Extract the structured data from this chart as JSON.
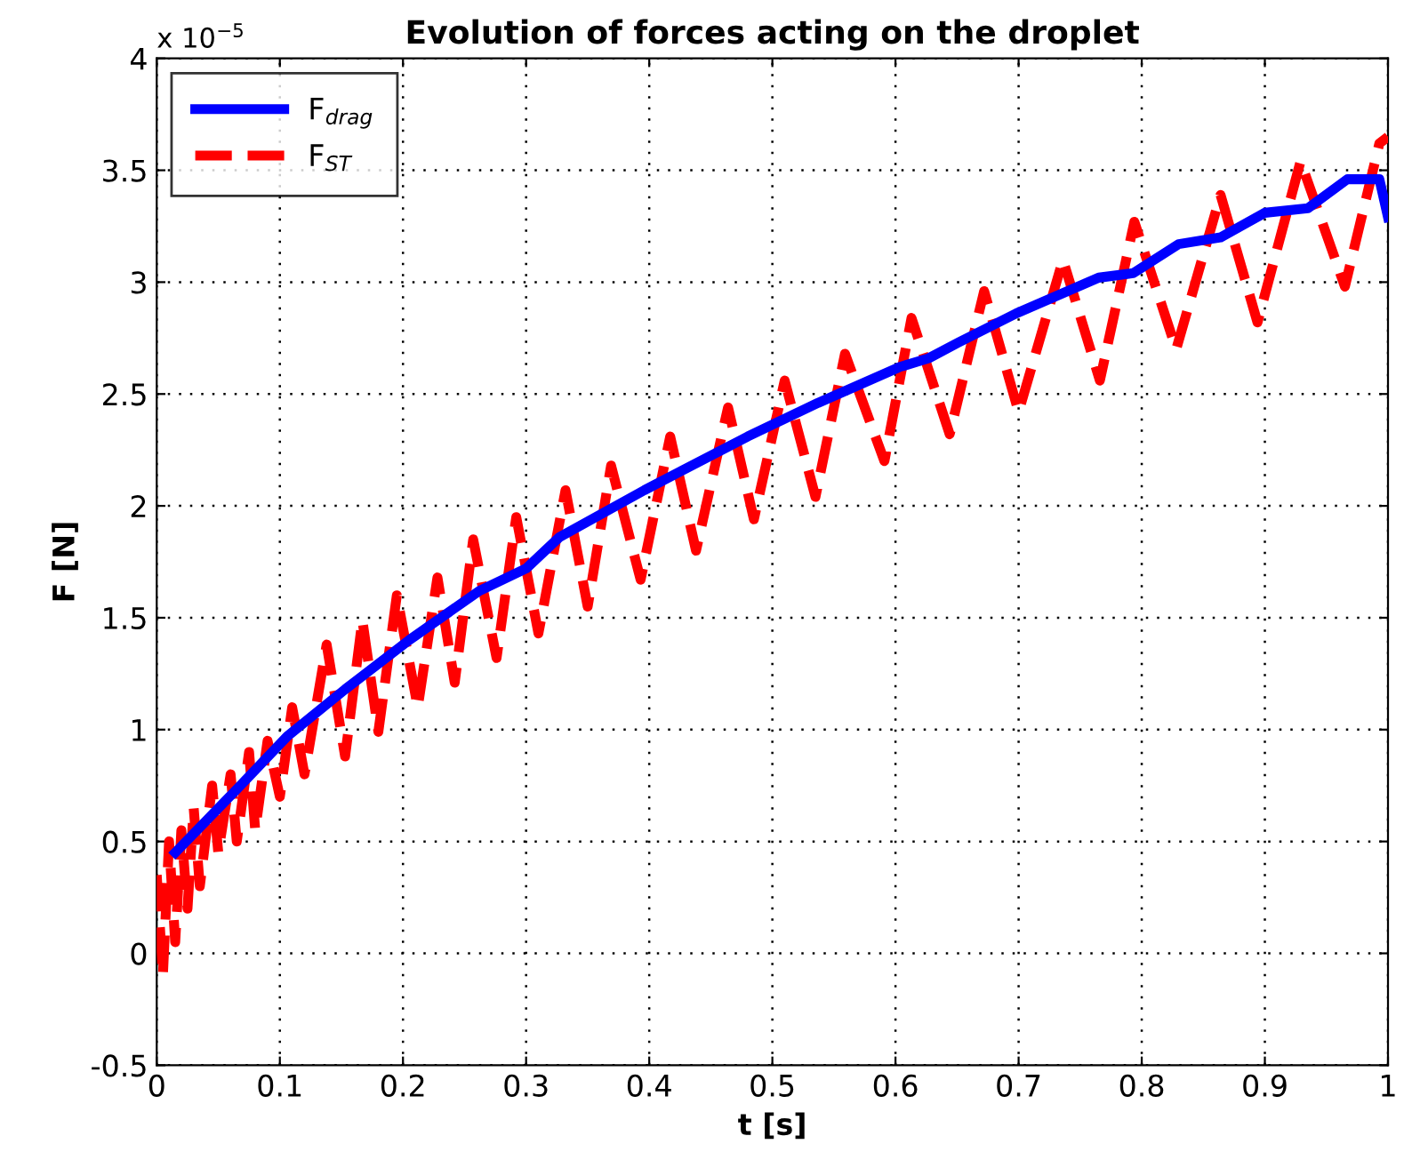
{
  "chart_data": {
    "type": "line",
    "title": "Evolution of forces acting on the droplet",
    "xlabel": "t [s]",
    "ylabel": "F [N]",
    "annotations": [
      "x 10$^{−5}$"
    ],
    "xlim": [
      0,
      1
    ],
    "xticks": [
      0,
      0.1,
      0.2,
      0.3,
      0.4,
      0.5,
      0.6,
      0.7,
      0.8,
      0.9,
      1
    ],
    "ylim": [
      -0.5,
      4
    ],
    "yticks": [
      -0.5,
      0,
      0.5,
      1,
      1.5,
      2,
      2.5,
      3,
      3.5,
      4
    ],
    "grid": true,
    "legend": "top left",
    "marker": "none",
    "series": [
      {
        "name": "F$_{drag}$",
        "color": "#0000ff",
        "line_style": "solid",
        "x": [
          0.015,
          0.068,
          0.106,
          0.153,
          0.205,
          0.262,
          0.3,
          0.327,
          0.396,
          0.48,
          0.537,
          0.603,
          0.627,
          0.651,
          0.698,
          0.765,
          0.793,
          0.83,
          0.864,
          0.9,
          0.935,
          0.967,
          0.993,
          1.0
        ],
        "values": [
          0.45,
          0.75,
          0.97,
          1.18,
          1.4,
          1.62,
          1.72,
          1.86,
          2.07,
          2.31,
          2.46,
          2.62,
          2.66,
          2.73,
          2.86,
          3.02,
          3.04,
          3.17,
          3.2,
          3.31,
          3.33,
          3.46,
          3.46,
          3.29
        ]
      },
      {
        "name": "F$_{ST}$",
        "color": "#ff0000",
        "line_style": "dashed",
        "x": [
          0.0,
          0.005,
          0.01,
          0.015,
          0.02,
          0.025,
          0.03,
          0.035,
          0.045,
          0.05,
          0.06,
          0.065,
          0.075,
          0.08,
          0.09,
          0.1,
          0.11,
          0.12,
          0.138,
          0.153,
          0.167,
          0.18,
          0.195,
          0.212,
          0.228,
          0.242,
          0.257,
          0.276,
          0.292,
          0.31,
          0.332,
          0.35,
          0.369,
          0.393,
          0.417,
          0.438,
          0.464,
          0.485,
          0.51,
          0.535,
          0.559,
          0.591,
          0.613,
          0.644,
          0.672,
          0.7,
          0.736,
          0.766,
          0.794,
          0.828,
          0.864,
          0.894,
          0.929,
          0.965,
          0.993,
          1.0
        ],
        "values": [
          0.35,
          -0.1,
          0.5,
          0.05,
          0.55,
          0.2,
          0.65,
          0.3,
          0.75,
          0.45,
          0.8,
          0.5,
          0.9,
          0.55,
          0.95,
          0.7,
          1.1,
          0.8,
          1.38,
          0.88,
          1.49,
          0.99,
          1.6,
          1.1,
          1.68,
          1.21,
          1.85,
          1.32,
          1.95,
          1.43,
          2.07,
          1.55,
          2.18,
          1.67,
          2.31,
          1.8,
          2.44,
          1.94,
          2.56,
          2.04,
          2.68,
          2.2,
          2.84,
          2.32,
          2.96,
          2.42,
          3.1,
          2.56,
          3.27,
          2.7,
          3.39,
          2.82,
          3.54,
          2.98,
          3.62,
          3.65
        ]
      }
    ]
  }
}
